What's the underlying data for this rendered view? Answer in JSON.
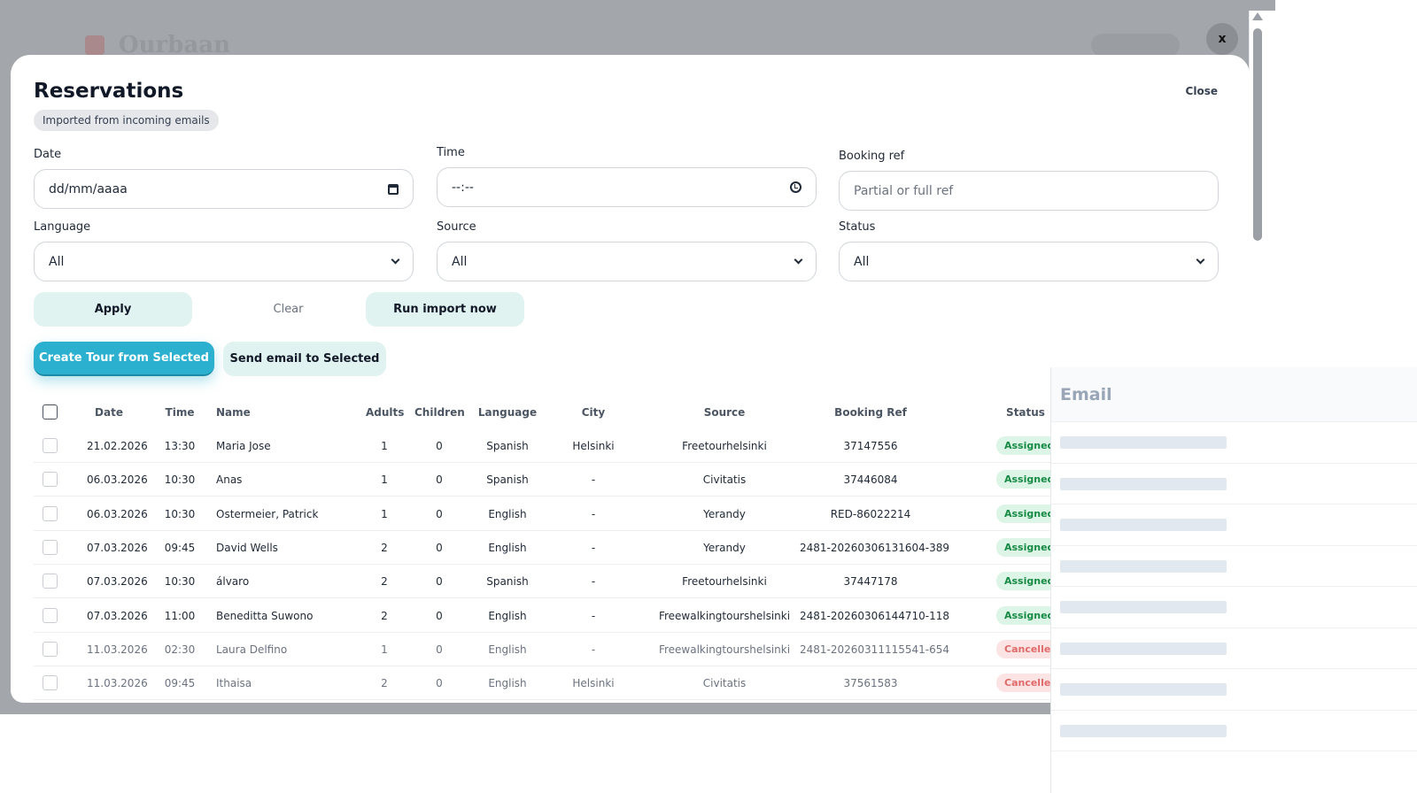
{
  "background": {
    "app_title": "Ourbaan"
  },
  "modal": {
    "title": "Reservations",
    "subtitle_chip": "Imported from incoming emails",
    "close_label": "Close",
    "x_label": "x"
  },
  "filters": {
    "date": {
      "label": "Date",
      "value": "dd/mm/aaaa"
    },
    "time": {
      "label": "Time",
      "value": "--:--"
    },
    "booking_ref": {
      "label": "Booking ref",
      "placeholder": "Partial or full ref"
    },
    "language": {
      "label": "Language",
      "value": "All"
    },
    "source": {
      "label": "Source",
      "value": "All"
    },
    "status": {
      "label": "Status",
      "value": "All"
    }
  },
  "actions": {
    "apply": "Apply",
    "clear": "Clear",
    "run_import": "Run import now",
    "create_tour": "Create Tour from Selected",
    "send_email": "Send email to Selected"
  },
  "table": {
    "headers": [
      "Date",
      "Time",
      "Name",
      "Adults",
      "Children",
      "Language",
      "City",
      "Source",
      "Booking Ref",
      "Status"
    ],
    "rows": [
      {
        "date": "21.02.2026",
        "time": "13:30",
        "name": "Maria Jose",
        "adults": "1",
        "children": "0",
        "language": "Spanish",
        "city": "Helsinki",
        "source": "Freetourhelsinki",
        "ref": "37147556",
        "status": "Assigned"
      },
      {
        "date": "06.03.2026",
        "time": "10:30",
        "name": "Anas",
        "adults": "1",
        "children": "0",
        "language": "Spanish",
        "city": "-",
        "source": "Civitatis",
        "ref": "37446084",
        "status": "Assigned"
      },
      {
        "date": "06.03.2026",
        "time": "10:30",
        "name": "Ostermeier, Patrick",
        "adults": "1",
        "children": "0",
        "language": "English",
        "city": "-",
        "source": "Yerandy",
        "ref": "RED-86022214",
        "status": "Assigned"
      },
      {
        "date": "07.03.2026",
        "time": "09:45",
        "name": "David Wells",
        "adults": "2",
        "children": "0",
        "language": "English",
        "city": "-",
        "source": "Yerandy",
        "ref": "2481-20260306131604-389",
        "status": "Assigned"
      },
      {
        "date": "07.03.2026",
        "time": "10:30",
        "name": "álvaro",
        "adults": "2",
        "children": "0",
        "language": "Spanish",
        "city": "-",
        "source": "Freetourhelsinki",
        "ref": "37447178",
        "status": "Assigned"
      },
      {
        "date": "07.03.2026",
        "time": "11:00",
        "name": "Beneditta Suwono",
        "adults": "2",
        "children": "0",
        "language": "English",
        "city": "-",
        "source": "Freewalkingtourshelsinki",
        "ref": "2481-20260306144710-118",
        "status": "Assigned"
      },
      {
        "date": "11.03.2026",
        "time": "02:30",
        "name": "Laura Delfino",
        "adults": "1",
        "children": "0",
        "language": "English",
        "city": "-",
        "source": "Freewalkingtourshelsinki",
        "ref": "2481-20260311115541-654",
        "status": "Cancelled"
      },
      {
        "date": "11.03.2026",
        "time": "09:45",
        "name": "Ithaisa",
        "adults": "2",
        "children": "0",
        "language": "English",
        "city": "Helsinki",
        "source": "Civitatis",
        "ref": "37561583",
        "status": "Cancelled"
      }
    ]
  },
  "email_panel": {
    "title": "Email"
  },
  "colors": {
    "accent": "#2bb0cf",
    "assigned": "#178a46",
    "cancelled": "#e06a6a"
  }
}
